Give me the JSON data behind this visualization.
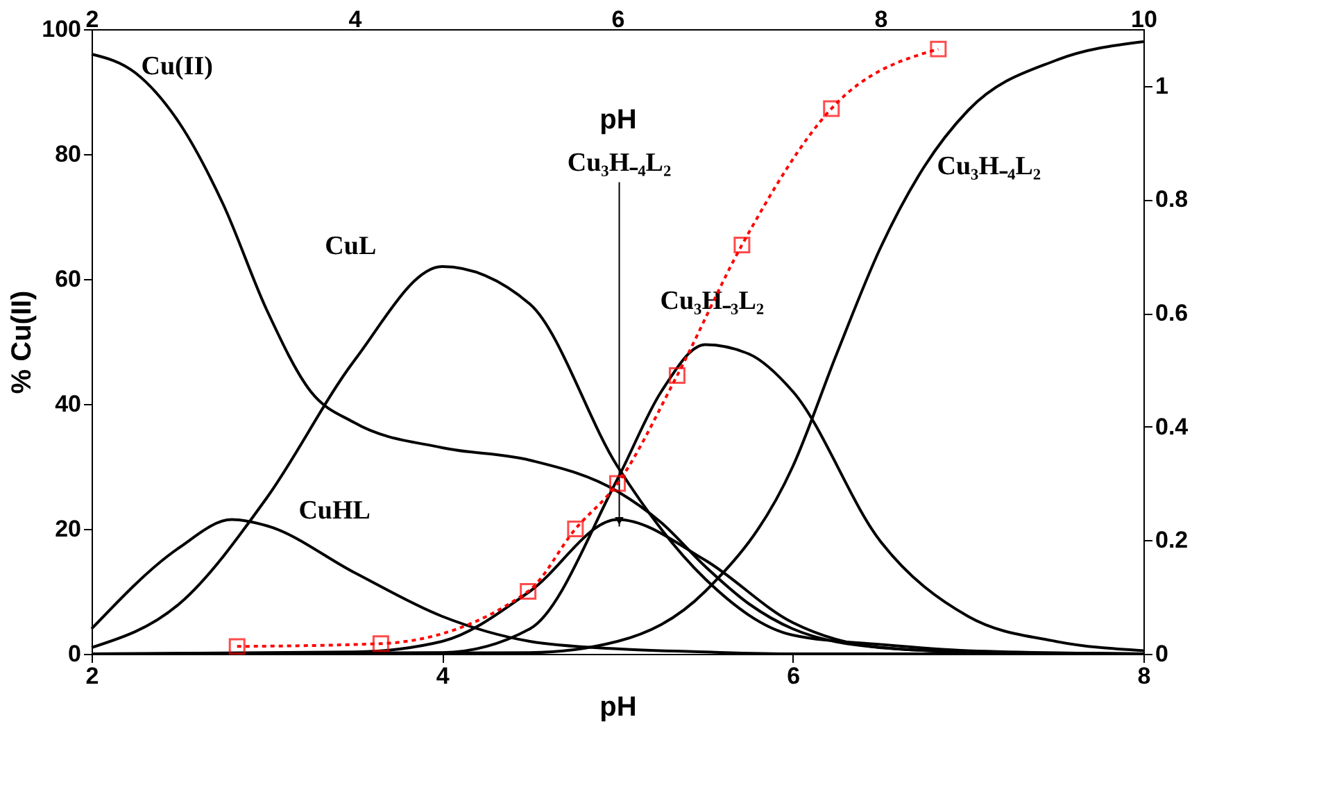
{
  "chart_data": {
    "type": "line",
    "xlabel": "pH",
    "ylabel": "% Cu(II)",
    "x2label": "pH",
    "xlim": [
      2,
      8
    ],
    "xticks": [
      2,
      4,
      6,
      8
    ],
    "ylim": [
      0,
      100
    ],
    "yticks": [
      0,
      20,
      40,
      60,
      80,
      100
    ],
    "x2lim": [
      2,
      10
    ],
    "x2ticks": [
      2,
      4,
      6,
      8,
      10
    ],
    "y2lim": [
      0,
      1.1
    ],
    "y2ticks": [
      0,
      0.2,
      0.4,
      0.6,
      0.8,
      1
    ],
    "grid": false,
    "marker": "none",
    "line_style": "solid",
    "series": [
      {
        "name": "Cu(II)",
        "color": "#000000",
        "x": [
          2,
          2.25,
          2.5,
          2.75,
          3,
          3.25,
          3.5,
          4,
          4.5,
          5,
          5.25,
          5.5,
          5.75,
          6,
          6.5,
          7,
          8
        ],
        "values": [
          96,
          93,
          85,
          72,
          55,
          42,
          37,
          33,
          31,
          26,
          21,
          14,
          8,
          4,
          1,
          0.3,
          0
        ]
      },
      {
        "name": "CuL",
        "color": "#000000",
        "x": [
          2,
          2.5,
          3,
          3.5,
          4,
          4.5,
          5,
          5.5,
          6,
          6.5,
          7,
          8
        ],
        "values": [
          1,
          8,
          25,
          47,
          62,
          56,
          30,
          12,
          3,
          1.5,
          0.5,
          0
        ]
      },
      {
        "name": "CuHL",
        "color": "#000000",
        "x": [
          2,
          2.5,
          2.8,
          3,
          3.5,
          4,
          4.5,
          5,
          5.5,
          6,
          8
        ],
        "values": [
          4,
          17,
          21.5,
          20.5,
          13,
          6,
          2,
          0.8,
          0.3,
          0,
          0
        ]
      },
      {
        "color": "#000000",
        "x": [
          2,
          3.5,
          4,
          4.5,
          5,
          5.5,
          6,
          6.5,
          7,
          8
        ],
        "values": [
          0,
          0.3,
          2,
          10,
          21.5,
          15,
          5,
          1,
          0.3,
          0
        ]
      },
      {
        "name": "Cu₃H₋₃L₂",
        "color": "#000000",
        "x": [
          2,
          4,
          4.5,
          5,
          5.25,
          5.5,
          5.75,
          6,
          6.5,
          7,
          7.5,
          8
        ],
        "values": [
          0,
          0.2,
          4,
          28,
          42,
          49.5,
          48,
          42,
          18,
          6,
          2,
          0.5
        ]
      },
      {
        "name": "Cu₃H₋₄L₂",
        "color": "#000000",
        "x": [
          2,
          4.5,
          5,
          5.5,
          6,
          6.25,
          6.5,
          6.75,
          7,
          7.5,
          8
        ],
        "values": [
          0,
          0.2,
          2,
          10,
          30,
          48,
          65,
          78,
          87,
          95,
          98
        ]
      },
      {
        "color": "#ff0000",
        "axis": "y2",
        "line_style": "dotted",
        "marker": "square",
        "x": [
          2.83,
          3.65,
          4.49,
          4.76,
          5.0,
          5.34,
          5.71,
          6.22,
          6.83
        ],
        "values": [
          0.013,
          0.018,
          0.11,
          0.22,
          0.3,
          0.49,
          0.72,
          0.96,
          1.065
        ]
      }
    ],
    "annotations": [
      {
        "text": "Cu₃H₋₄L₂",
        "x": 5.01,
        "y": 20.4
      }
    ]
  }
}
